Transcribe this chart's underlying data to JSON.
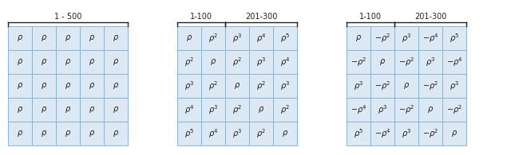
{
  "matrix1": {
    "label": "1 - 500",
    "cells": [
      [
        "ρ",
        "ρ",
        "ρ",
        "ρ",
        "ρ"
      ],
      [
        "ρ",
        "ρ",
        "ρ",
        "ρ",
        "ρ"
      ],
      [
        "ρ",
        "ρ",
        "ρ",
        "ρ",
        "ρ"
      ],
      [
        "ρ",
        "ρ",
        "ρ",
        "ρ",
        "ρ"
      ],
      [
        "ρ",
        "ρ",
        "ρ",
        "ρ",
        "ρ"
      ]
    ]
  },
  "matrix2": {
    "label1": "1-100",
    "label2": "201-300",
    "cells": [
      [
        "ρ",
        "ρ^{2}",
        "ρ^{3}",
        "ρ^{4}",
        "ρ^{5}"
      ],
      [
        "ρ^{2}",
        "ρ",
        "ρ^{2}",
        "ρ^{3}",
        "ρ^{4}"
      ],
      [
        "ρ^{3}",
        "ρ^{2}",
        "ρ",
        "ρ^{2}",
        "ρ^{3}"
      ],
      [
        "ρ^{4}",
        "ρ^{3}",
        "ρ^{2}",
        "ρ",
        "ρ^{2}"
      ],
      [
        "ρ^{5}",
        "ρ^{4}",
        "ρ^{3}",
        "ρ^{2}",
        "ρ"
      ]
    ]
  },
  "matrix3": {
    "label1": "1-100",
    "label2": "201-300",
    "cells": [
      [
        "ρ",
        "-ρ^{2}",
        "ρ^{3}",
        "-ρ^{4}",
        "ρ^{5}"
      ],
      [
        "-ρ^{2}",
        "ρ",
        "-ρ^{2}",
        "ρ^{3}",
        "-ρ^{4}"
      ],
      [
        "ρ^{3}",
        "-ρ^{2}",
        "ρ",
        "-ρ^{2}",
        "ρ^{3}"
      ],
      [
        "-ρ^{4}",
        "ρ^{3}",
        "-ρ^{2}",
        "ρ",
        "-ρ^{2}"
      ],
      [
        "ρ^{5}",
        "-ρ^{4}",
        "ρ^{3}",
        "-ρ^{2}",
        "ρ"
      ]
    ]
  },
  "bg_color": "#dce9f5",
  "grid_color": "#8ab4d4",
  "text_color": "#1a1a1a",
  "bracket_color": "#222222",
  "label_color": "#222222",
  "cell_size": 0.27,
  "font_size": 7.0,
  "label_font_size": 7.0
}
